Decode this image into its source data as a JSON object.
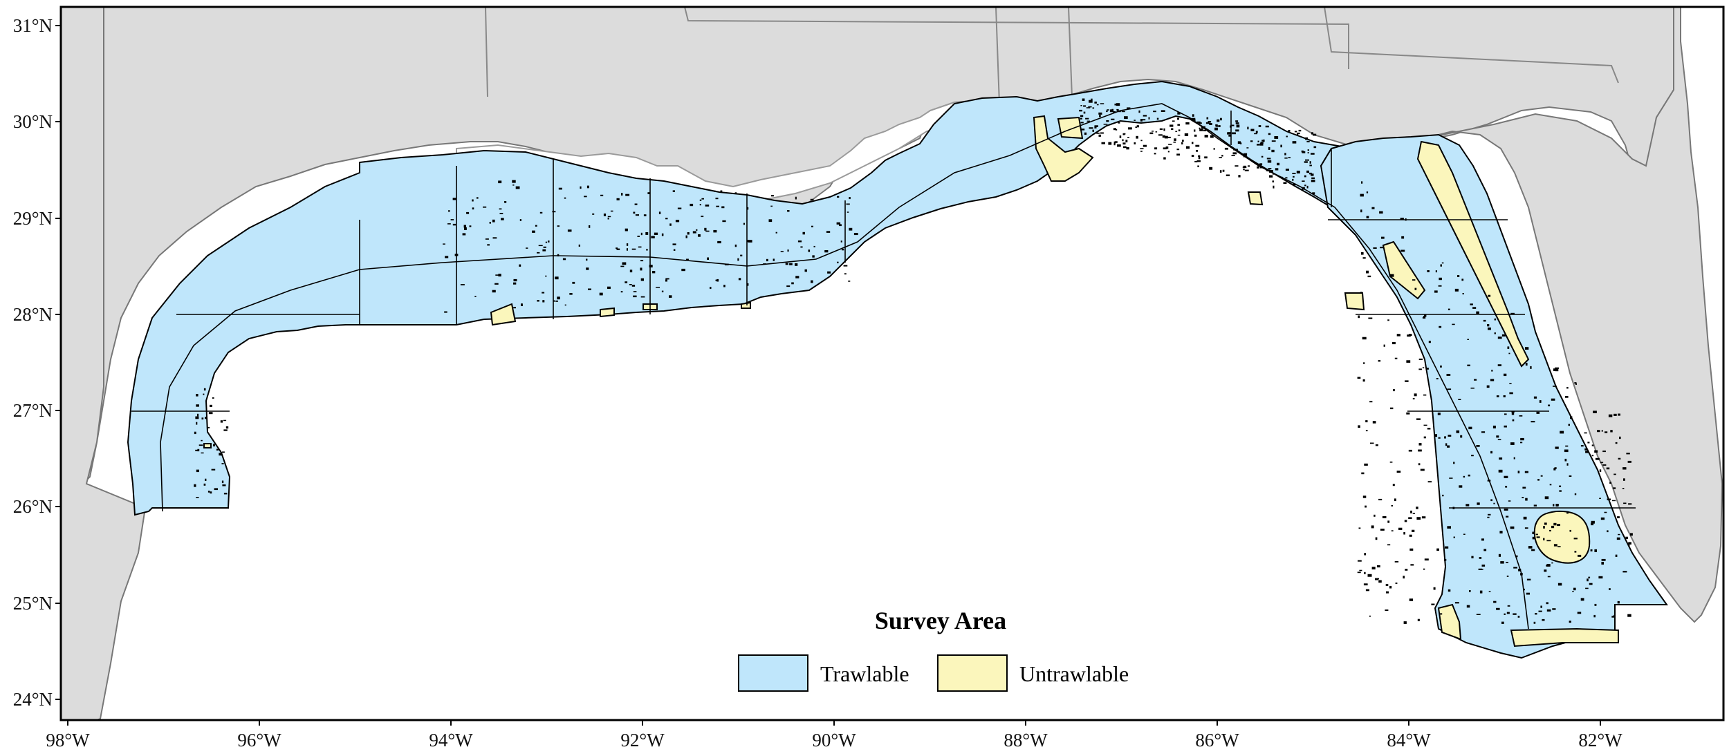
{
  "map": {
    "colors": {
      "land": "#dcdcdc",
      "coast_outline": "#777777",
      "water": "#ffffff",
      "trawlable": "#bfe6fb",
      "untrawlable": "#fbf6bc",
      "block_outline": "#000000",
      "hard_bottom": "#000000"
    },
    "longitude_ticks": [
      "98°W",
      "96°W",
      "94°W",
      "92°W",
      "90°W",
      "88°W",
      "86°W",
      "84°W",
      "82°W"
    ],
    "latitude_ticks": [
      "31°N",
      "30°N",
      "29°N",
      "28°N",
      "27°N",
      "26°N",
      "25°N",
      "24°N"
    ],
    "legend": {
      "title": "Survey Area",
      "items": [
        {
          "label": "Trawlable",
          "color": "#bfe6fb"
        },
        {
          "label": "Untrawlable",
          "color": "#fbf6bc"
        }
      ]
    }
  }
}
